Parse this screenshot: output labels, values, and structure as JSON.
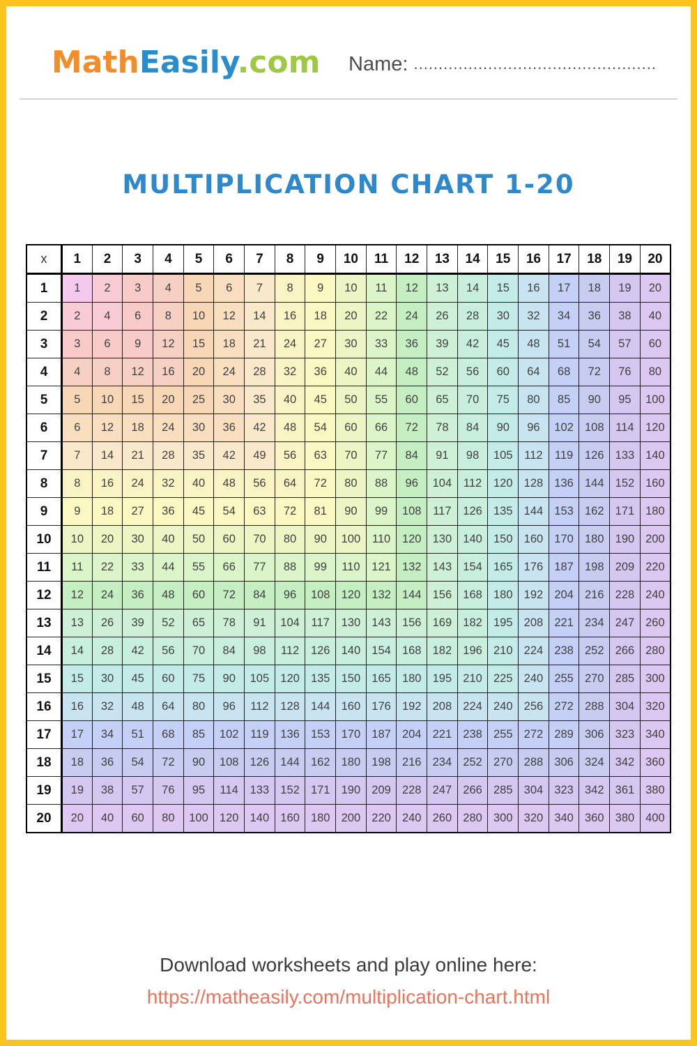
{
  "colors": {
    "frame": "#fcc21d",
    "logo_math": "#ef8e2a",
    "logo_easily": "#2b8ccb",
    "logo_com": "#9fc845",
    "title": "#2e88ca",
    "link": "#e7755b"
  },
  "header": {
    "logo": {
      "math": "Math",
      "easily": "Easily",
      "com": ".com"
    },
    "name_label": "Name:",
    "name_dots": "................................................."
  },
  "title": "MULTIPLICATION CHART 1-20",
  "table": {
    "corner_label": "x",
    "col_headers": [
      1,
      2,
      3,
      4,
      5,
      6,
      7,
      8,
      9,
      10,
      11,
      12,
      13,
      14,
      15,
      16,
      17,
      18,
      19,
      20
    ],
    "row_headers": [
      1,
      2,
      3,
      4,
      5,
      6,
      7,
      8,
      9,
      10,
      11,
      12,
      13,
      14,
      15,
      16,
      17,
      18,
      19,
      20
    ],
    "ring_colors": [
      "#f4c9ee",
      "#f7ccd4",
      "#f8cac8",
      "#f7d0c4",
      "#f8d7b7",
      "#f9dfc0",
      "#fae8ca",
      "#faf3c3",
      "#fbf9c1",
      "#ecf5c3",
      "#dbf5c9",
      "#c5eec3",
      "#cdf0d7",
      "#c8eedd",
      "#c3ebe7",
      "#c8e4f1",
      "#c4d0f5",
      "#c8ccf0",
      "#d4c8f0",
      "#dcc8f1"
    ],
    "values": [
      [
        1,
        2,
        3,
        4,
        5,
        6,
        7,
        8,
        9,
        10,
        11,
        12,
        13,
        14,
        15,
        16,
        17,
        18,
        19,
        20
      ],
      [
        2,
        4,
        6,
        8,
        10,
        12,
        14,
        16,
        18,
        20,
        22,
        24,
        26,
        28,
        30,
        32,
        34,
        36,
        38,
        40
      ],
      [
        3,
        6,
        9,
        12,
        15,
        18,
        21,
        24,
        27,
        30,
        33,
        36,
        39,
        42,
        45,
        48,
        51,
        54,
        57,
        60
      ],
      [
        4,
        8,
        12,
        16,
        20,
        24,
        28,
        32,
        36,
        40,
        44,
        48,
        52,
        56,
        60,
        64,
        68,
        72,
        76,
        80
      ],
      [
        5,
        10,
        15,
        20,
        25,
        30,
        35,
        40,
        45,
        50,
        55,
        60,
        65,
        70,
        75,
        80,
        85,
        90,
        95,
        100
      ],
      [
        6,
        12,
        18,
        24,
        30,
        36,
        42,
        48,
        54,
        60,
        66,
        72,
        78,
        84,
        90,
        96,
        102,
        108,
        114,
        120
      ],
      [
        7,
        14,
        21,
        28,
        35,
        42,
        49,
        56,
        63,
        70,
        77,
        84,
        91,
        98,
        105,
        112,
        119,
        126,
        133,
        140
      ],
      [
        8,
        16,
        24,
        32,
        40,
        48,
        56,
        64,
        72,
        80,
        88,
        96,
        104,
        112,
        120,
        128,
        136,
        144,
        152,
        160
      ],
      [
        9,
        18,
        27,
        36,
        45,
        54,
        63,
        72,
        81,
        90,
        99,
        108,
        117,
        126,
        135,
        144,
        153,
        162,
        171,
        180
      ],
      [
        10,
        20,
        30,
        40,
        50,
        60,
        70,
        80,
        90,
        100,
        110,
        120,
        130,
        140,
        150,
        160,
        170,
        180,
        190,
        200
      ],
      [
        11,
        22,
        33,
        44,
        55,
        66,
        77,
        88,
        99,
        110,
        121,
        132,
        143,
        154,
        165,
        176,
        187,
        198,
        209,
        220
      ],
      [
        12,
        24,
        36,
        48,
        60,
        72,
        84,
        96,
        108,
        120,
        132,
        144,
        156,
        168,
        180,
        192,
        204,
        216,
        228,
        240
      ],
      [
        13,
        26,
        39,
        52,
        65,
        78,
        91,
        104,
        117,
        130,
        143,
        156,
        169,
        182,
        195,
        208,
        221,
        234,
        247,
        260
      ],
      [
        14,
        28,
        42,
        56,
        70,
        84,
        98,
        112,
        126,
        140,
        154,
        168,
        182,
        196,
        210,
        224,
        238,
        252,
        266,
        280
      ],
      [
        15,
        30,
        45,
        60,
        75,
        90,
        105,
        120,
        135,
        150,
        165,
        180,
        195,
        210,
        225,
        240,
        255,
        270,
        285,
        300
      ],
      [
        16,
        32,
        48,
        64,
        80,
        96,
        112,
        128,
        144,
        160,
        176,
        192,
        208,
        224,
        240,
        256,
        272,
        288,
        304,
        320
      ],
      [
        17,
        34,
        51,
        68,
        85,
        102,
        119,
        136,
        153,
        170,
        187,
        204,
        221,
        238,
        255,
        272,
        289,
        306,
        323,
        340
      ],
      [
        18,
        36,
        54,
        72,
        90,
        108,
        126,
        144,
        162,
        180,
        198,
        216,
        234,
        252,
        270,
        288,
        306,
        324,
        342,
        360
      ],
      [
        19,
        38,
        57,
        76,
        95,
        114,
        133,
        152,
        171,
        190,
        209,
        228,
        247,
        266,
        285,
        304,
        323,
        342,
        361,
        380
      ],
      [
        20,
        40,
        60,
        80,
        100,
        120,
        140,
        160,
        180,
        200,
        220,
        240,
        260,
        280,
        300,
        320,
        340,
        360,
        380,
        400
      ]
    ]
  },
  "footer": {
    "line1": "Download worksheets and play online here:",
    "link": "https://matheasily.com/multiplication-chart.html"
  }
}
